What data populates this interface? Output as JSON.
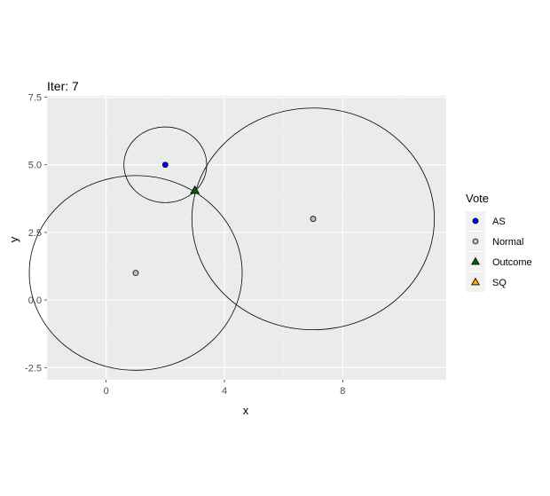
{
  "chart_data": {
    "type": "scatter",
    "title": "Iter: 7",
    "xlabel": "x",
    "ylabel": "y",
    "xlim": [
      -2,
      11.5
    ],
    "ylim": [
      -2.95,
      7.55
    ],
    "x_ticks": [
      0,
      4,
      8
    ],
    "x_tick_labels": [
      "0",
      "4",
      "8"
    ],
    "y_ticks": [
      -2.5,
      0,
      2.5,
      5,
      7.5
    ],
    "y_tick_labels": [
      "-2.5",
      "0.0",
      "2.5",
      "5.0",
      "7.5"
    ],
    "grid": true,
    "legend": {
      "title": "Vote",
      "placement": "right",
      "entries": [
        {
          "label": "AS",
          "shape": "circle",
          "color": "#0000ff"
        },
        {
          "label": "Normal",
          "shape": "circle",
          "color": "#bebebe"
        },
        {
          "label": "Outcome",
          "shape": "triangle",
          "color": "#006400"
        },
        {
          "label": "SQ",
          "shape": "triangle",
          "color": "#ffa500"
        }
      ]
    },
    "points": [
      {
        "x": 2,
        "y": 5,
        "vote": "AS",
        "color": "#0000ff",
        "shape": "circle"
      },
      {
        "x": 1,
        "y": 1,
        "vote": "Normal",
        "color": "#bebebe",
        "shape": "circle"
      },
      {
        "x": 7,
        "y": 3,
        "vote": "Normal",
        "color": "#bebebe",
        "shape": "circle"
      },
      {
        "x": 3,
        "y": 4.05,
        "vote": "Outcome",
        "color": "#006400",
        "shape": "triangle"
      }
    ],
    "circles": [
      {
        "cx": 2,
        "cy": 5,
        "r": 1.4
      },
      {
        "cx": 1,
        "cy": 1,
        "r": 3.6
      },
      {
        "cx": 7,
        "cy": 3,
        "r": 4.1
      }
    ]
  }
}
